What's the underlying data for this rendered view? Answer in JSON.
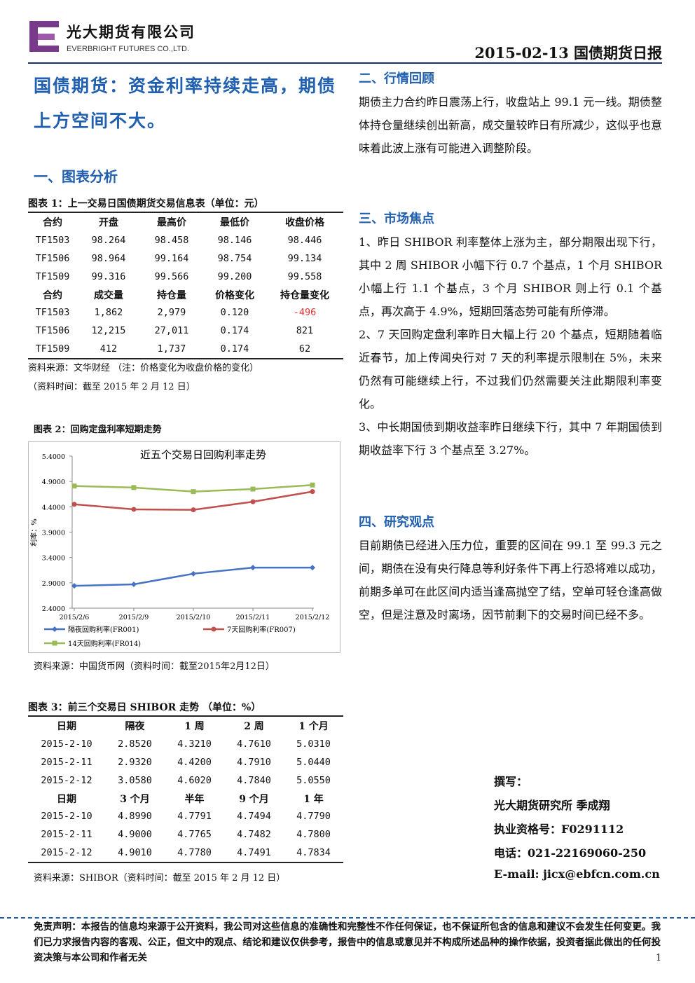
{
  "header": {
    "company_cn": "光大期货有限公司",
    "company_en": "EVERBRIGHT FUTURES CO.,LTD.",
    "report_title": "2015-02-13 国债期货日报"
  },
  "headline": "国债期货：资金利率持续走高，期债上方空间不大。",
  "section1_title": "一、图表分析",
  "table1": {
    "caption": "图表 1：上一交易日国债期货交易信息表（单位：元）",
    "blocks": [
      {
        "header": [
          "合约",
          "开盘",
          "最高价",
          "最低价",
          "收盘价格"
        ],
        "rows": [
          [
            "TF1503",
            "98.264",
            "98.458",
            "98.146",
            "98.446"
          ],
          [
            "TF1506",
            "98.964",
            "99.164",
            "98.754",
            "99.134"
          ],
          [
            "TF1509",
            "99.316",
            "99.566",
            "99.200",
            "99.558"
          ]
        ]
      },
      {
        "header": [
          "合约",
          "成交量",
          "持仓量",
          "价格变化",
          "持仓量变化"
        ],
        "rows": [
          [
            "TF1503",
            "1,862",
            "2,979",
            "0.120",
            "-496"
          ],
          [
            "TF1506",
            "12,215",
            "27,011",
            "0.174",
            "821"
          ],
          [
            "TF1509",
            "412",
            "1,737",
            "0.174",
            "62"
          ]
        ]
      }
    ],
    "source": "资料来源：文华财经 （注：价格变化为收盘价格的变化）",
    "time": "（资料时间：截至 2015 年 2 月 12 日）"
  },
  "chart_caption": "图表 2：回购定盘利率短期走势",
  "chart_data": {
    "type": "line",
    "title": "近五个交易日回购利率走势",
    "y_label": "利率：%",
    "categories": [
      "2015/2/6",
      "2015/2/9",
      "2015/2/10",
      "2015/2/11",
      "2015/2/12"
    ],
    "series": [
      {
        "name": "隔夜回购利率(FR001)",
        "color": "#4472c4",
        "marker": "diamond",
        "values": [
          2.84,
          2.87,
          3.08,
          3.2,
          3.2
        ]
      },
      {
        "name": "7天回购利率(FR007)",
        "color": "#c0504d",
        "marker": "circle",
        "values": [
          4.45,
          4.35,
          4.34,
          4.5,
          4.7
        ]
      },
      {
        "name": "14天回购利率(FR014)",
        "color": "#9bbb59",
        "marker": "square",
        "values": [
          4.81,
          4.78,
          4.7,
          4.75,
          4.83
        ]
      }
    ],
    "ylim": [
      2.4,
      5.4
    ],
    "yticks": [
      {
        "value": 2.4,
        "label": "2.4000"
      },
      {
        "value": 2.9,
        "label": "2.9000"
      },
      {
        "value": 3.4,
        "label": "3.4000"
      },
      {
        "value": 3.9,
        "label": "3.9000"
      },
      {
        "value": 4.4,
        "label": "4.4000"
      },
      {
        "value": 4.9,
        "label": "4.9000"
      },
      {
        "value": 5.4,
        "label": "5.4000"
      }
    ],
    "grid": false
  },
  "chart_source": "资料来源：中国货币网（资料时间：截至2015年2月12日）",
  "table3": {
    "caption": "图表 3：前三个交易日 SHIBOR 走势 （单位：%）",
    "blocks": [
      {
        "header": [
          "日期",
          "隔夜",
          "1 周",
          "2 周",
          "1 个月"
        ],
        "rows": [
          [
            "2015-2-10",
            "2.8520",
            "4.3210",
            "4.7610",
            "5.0310"
          ],
          [
            "2015-2-11",
            "2.9320",
            "4.4200",
            "4.7910",
            "5.0440"
          ],
          [
            "2015-2-12",
            "3.0580",
            "4.6020",
            "4.7840",
            "5.0550"
          ]
        ]
      },
      {
        "header": [
          "日期",
          "3 个月",
          "半年",
          "9 个月",
          "1 年"
        ],
        "rows": [
          [
            "2015-2-10",
            "4.8990",
            "4.7791",
            "4.7494",
            "4.7790"
          ],
          [
            "2015-2-11",
            "4.9000",
            "4.7765",
            "4.7482",
            "4.7800"
          ],
          [
            "2015-2-12",
            "4.9010",
            "4.7780",
            "4.7491",
            "4.7834"
          ]
        ]
      }
    ],
    "source": "资料来源：SHIBOR（资料时间：截至 2015 年 2 月 12 日）"
  },
  "sections": [
    {
      "title": "二、行情回顾",
      "paragraphs": [
        "期债主力合约昨日震荡上行，收盘站上 99.1 元一线。期债整体持仓量继续创出新高，成交量较昨日有所减少，这似乎也意味着此波上涨有可能进入调整阶段。"
      ]
    },
    {
      "title": "三、市场焦点",
      "paragraphs": [
        "1、昨日 SHIBOR 利率整体上涨为主，部分期限出现下行，其中 2 周 SHIBOR 小幅下行 0.7 个基点，1 个月 SHIBOR 小幅上行 1.1 个基点，3 个月 SHIBOR 则上行 0.1 个基点，再次高于 4.9%，短期回落态势可能有所停滞。",
        "2、7 天回购定盘利率昨日大幅上行 20 个基点，短期随着临近春节，加上传闻央行对 7 天的利率提示限制在 5%，未来仍然有可能继续上行，不过我们仍然需要关注此期限利率变化。",
        "3、中长期国债到期收益率昨日继续下行，其中 7 年期国债到期收益率下行 3 个基点至 3.27%。"
      ]
    },
    {
      "title": "四、研究观点",
      "paragraphs": [
        "目前期债已经进入压力位，重要的区间在 99.1 至 99.3 元之间，期债在没有央行降息等利好条件下再上行恐将难以成功，前期多单可在此区间内适当逢高抛空了结，空单可轻仓逢高做空，但是注意及时离场，因节前剩下的交易时间已经不多。"
      ]
    }
  ],
  "author": [
    "撰写：",
    "光大期货研究所 季成翔",
    "执业资格号：F0291112",
    "电话：021-22169060-250",
    "E-mail: jicx@ebfcn.com.cn"
  ],
  "disclaimer": "免责声明：本报告的信息均来源于公开资料，我公司对这些信息的准确性和完整性不作任何保证，也不保证所包含的信息和建议不会发生任何变更。我们已力求报告内容的客观、公正，但文中的观点、结论和建议仅供参考，报告中的信息或意见并不构成所述品种的操作依据，投资者据此做出的任何投资决策与本公司和作者无关",
  "page_number": "1"
}
